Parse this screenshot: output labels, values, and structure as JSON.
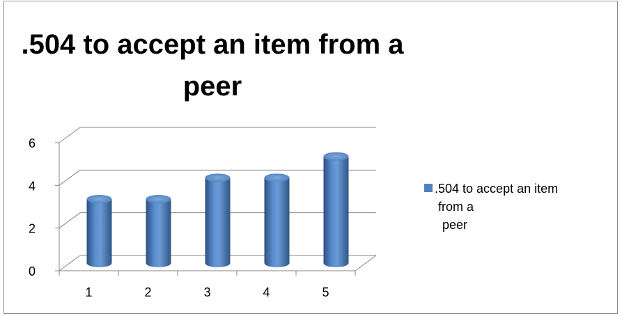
{
  "chart_data": {
    "type": "bar",
    "title_lines": [
      ".504 to accept an item from a",
      "peer"
    ],
    "categories": [
      "1",
      "2",
      "3",
      "4",
      "5"
    ],
    "series": [
      {
        "name_lines": [
          ".504 to accept an item",
          "from a",
          "peer"
        ],
        "values": [
          3,
          3,
          4,
          4,
          5
        ],
        "color": "#4f81bd"
      }
    ],
    "y_ticks": [
      "0",
      "2",
      "4",
      "6"
    ],
    "ylim": [
      0,
      6
    ],
    "grid": true,
    "legend_position": "right",
    "style": "3d-cylinder"
  }
}
